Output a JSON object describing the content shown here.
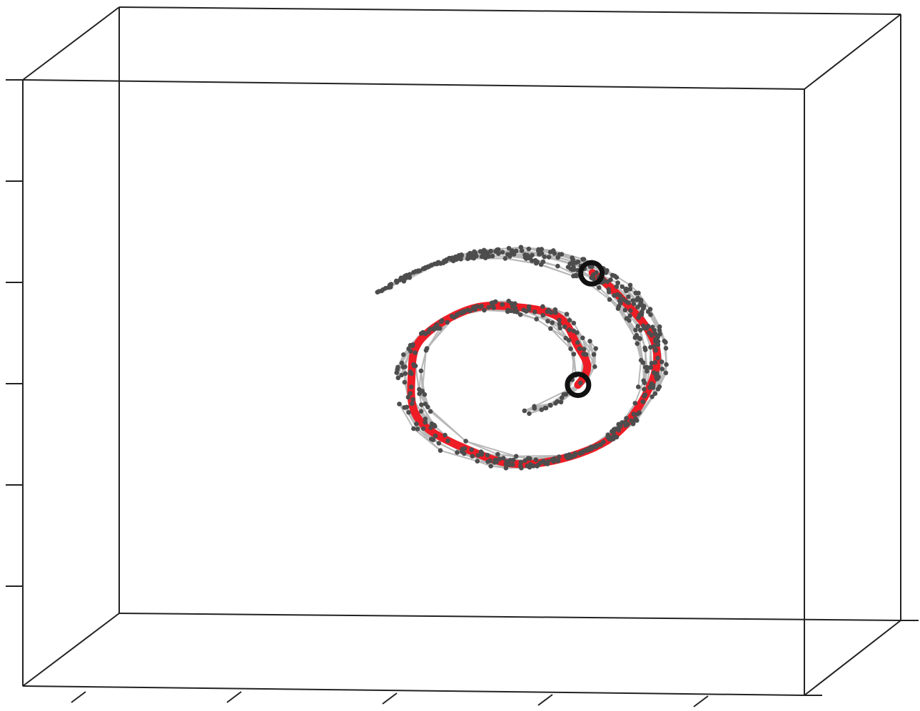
{
  "chart_data": {
    "type": "scatter",
    "variant": "3d-swiss-roll-knn-graph",
    "title": "",
    "xlabel": "",
    "ylabel": "",
    "zlabel": "",
    "grid": false,
    "legend": "none",
    "colors": {
      "points": "#4d4d4d",
      "edges": "#b8b8b8",
      "path": "#ee1c25",
      "endpoints": "#111111",
      "box": "#222222"
    },
    "roll": {
      "theta_range": [
        4.8,
        15.0
      ],
      "scale": 15.0,
      "center": [
        720,
        520
      ],
      "sample_count": 620,
      "path_theta_range": [
        6.0,
        13.6
      ]
    },
    "endpoints": [
      {
        "name": "path-start",
        "theta": 6.0
      },
      {
        "name": "path-end",
        "theta": 13.6
      }
    ]
  }
}
